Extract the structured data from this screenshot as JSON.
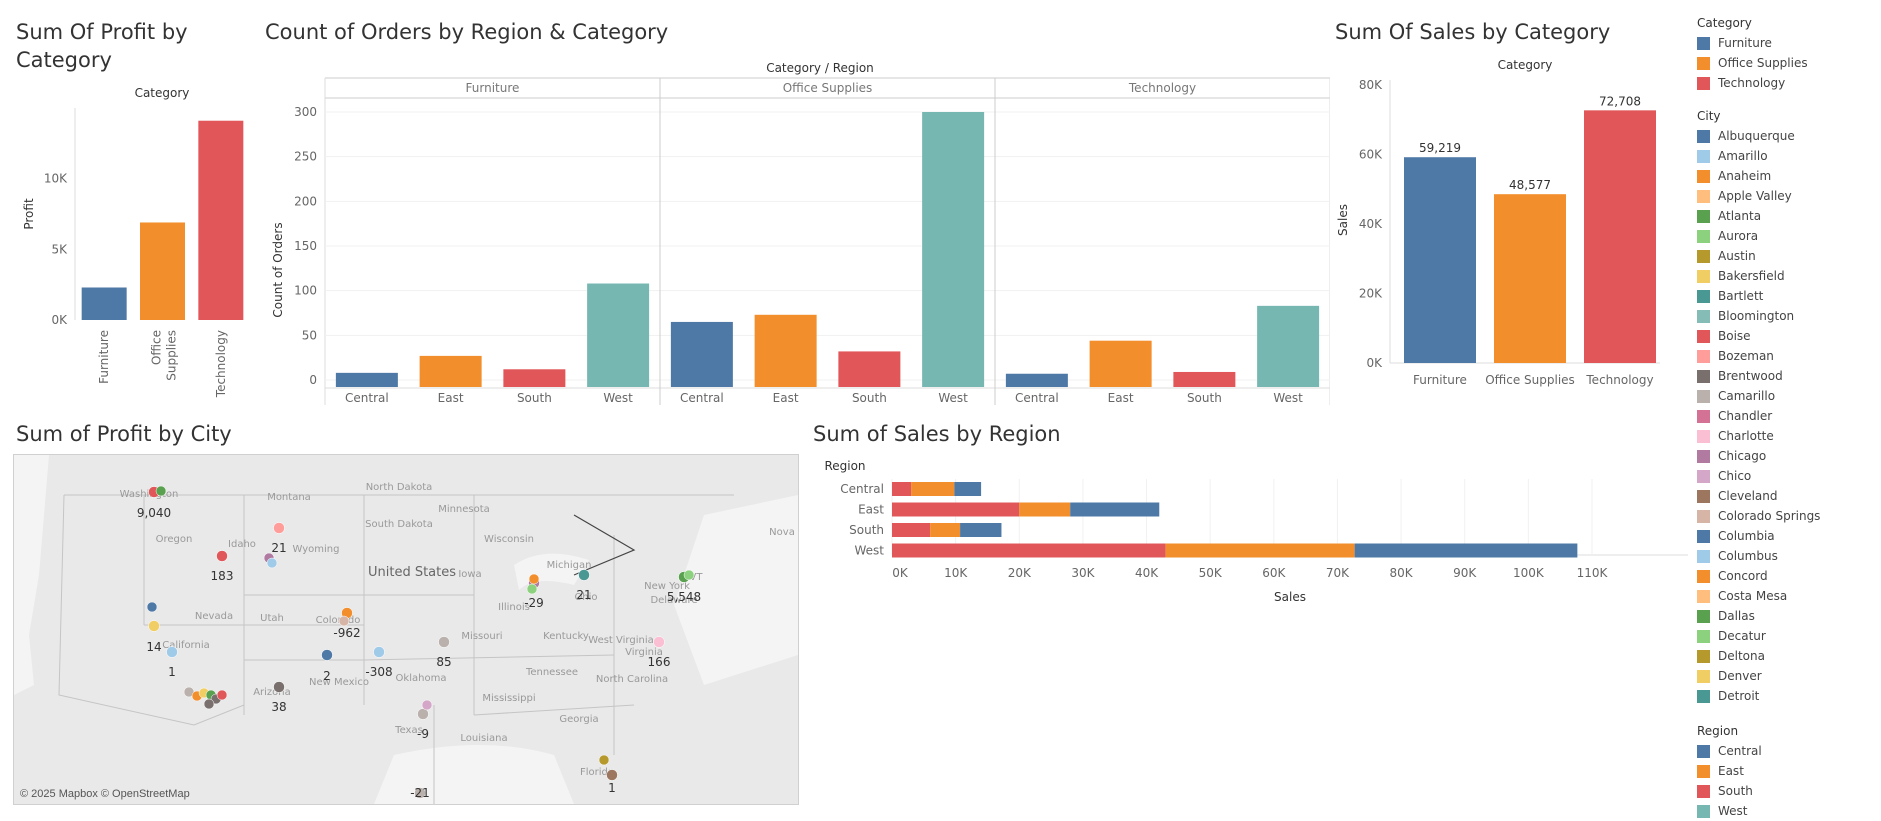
{
  "dashboard": {
    "profit_by_category": {
      "title": "Sum Of Profit by Category",
      "header": "Category",
      "ylabel": "Profit",
      "ticks": [
        "0K",
        "5K",
        "10K"
      ],
      "categories": [
        "Furniture",
        "Office Supplies",
        "Technology"
      ]
    },
    "orders_by_region": {
      "title": "Count of Orders by Region & Category",
      "header": "Category  /  Region",
      "ylabel": "Count of Orders",
      "ticks": [
        "0",
        "50",
        "100",
        "150",
        "200",
        "250",
        "300"
      ],
      "panels": [
        "Furniture",
        "Office Supplies",
        "Technology"
      ],
      "regions": [
        "Central",
        "East",
        "South",
        "West"
      ]
    },
    "sales_by_category": {
      "title": "Sum Of Sales by Category",
      "header": "Category",
      "ylabel": "Sales",
      "ticks": [
        "0K",
        "20K",
        "40K",
        "60K",
        "80K"
      ],
      "categories": [
        "Furniture",
        "Office Supplies",
        "Technology"
      ],
      "labels": [
        "59,219",
        "48,577",
        "72,708"
      ]
    },
    "profit_by_city": {
      "title": "Sum of Profit by City",
      "attribution": "© 2025 Mapbox © OpenStreetMap",
      "map_labels": [
        "Washington",
        "Montana",
        "North Dakota",
        "Minnesota",
        "South Dakota",
        "Oregon",
        "Idaho",
        "Wyoming",
        "Wisconsin",
        "Michigan",
        "Nova",
        "Iowa",
        "United States",
        "Nevada",
        "Utah",
        "Colorado",
        "Illinois",
        "Ohio",
        "New York",
        "VT",
        "California",
        "Missouri",
        "Kentucky",
        "West Virginia",
        "Virginia",
        "Arizona",
        "New Mexico",
        "Oklahoma",
        "Tennessee",
        "North Carolina",
        "Mississippi",
        "Texas",
        "Louisiana",
        "Georgia",
        "Florida",
        "Delaware"
      ],
      "value_labels": [
        "9,040",
        "21",
        "183",
        "-29",
        "21",
        "5,548",
        "-962",
        "14",
        "1",
        "2",
        "-308",
        "85",
        "166",
        "38",
        "-9",
        "-21",
        "1"
      ]
    },
    "sales_by_region": {
      "title": "Sum of Sales by Region",
      "header": "Region",
      "xlabel": "Sales",
      "ticks": [
        "0K",
        "10K",
        "20K",
        "30K",
        "40K",
        "50K",
        "60K",
        "70K",
        "80K",
        "90K",
        "100K",
        "110K"
      ],
      "regions": [
        "Central",
        "East",
        "South",
        "West"
      ]
    }
  },
  "legend": {
    "category": {
      "title": "Category",
      "items": [
        {
          "label": "Furniture",
          "color": "#4e79a7"
        },
        {
          "label": "Office Supplies",
          "color": "#f28e2b"
        },
        {
          "label": "Technology",
          "color": "#e15759"
        }
      ]
    },
    "city": {
      "title": "City",
      "items": [
        {
          "label": "Albuquerque",
          "color": "#4e79a7"
        },
        {
          "label": "Amarillo",
          "color": "#a0cbe8"
        },
        {
          "label": "Anaheim",
          "color": "#f28e2b"
        },
        {
          "label": "Apple Valley",
          "color": "#ffbe7d"
        },
        {
          "label": "Atlanta",
          "color": "#59a14f"
        },
        {
          "label": "Aurora",
          "color": "#8cd17d"
        },
        {
          "label": "Austin",
          "color": "#b6992d"
        },
        {
          "label": "Bakersfield",
          "color": "#f1ce63"
        },
        {
          "label": "Bartlett",
          "color": "#499894"
        },
        {
          "label": "Bloomington",
          "color": "#86bcb6"
        },
        {
          "label": "Boise",
          "color": "#e15759"
        },
        {
          "label": "Bozeman",
          "color": "#ff9d9a"
        },
        {
          "label": "Brentwood",
          "color": "#79706e"
        },
        {
          "label": "Camarillo",
          "color": "#bab0ac"
        },
        {
          "label": "Chandler",
          "color": "#d37295"
        },
        {
          "label": "Charlotte",
          "color": "#fabfd2"
        },
        {
          "label": "Chicago",
          "color": "#b07aa1"
        },
        {
          "label": "Chico",
          "color": "#d4a6c8"
        },
        {
          "label": "Cleveland",
          "color": "#9d7660"
        },
        {
          "label": "Colorado Springs",
          "color": "#d7b5a6"
        },
        {
          "label": "Columbia",
          "color": "#4e79a7"
        },
        {
          "label": "Columbus",
          "color": "#a0cbe8"
        },
        {
          "label": "Concord",
          "color": "#f28e2b"
        },
        {
          "label": "Costa Mesa",
          "color": "#ffbe7d"
        },
        {
          "label": "Dallas",
          "color": "#59a14f"
        },
        {
          "label": "Decatur",
          "color": "#8cd17d"
        },
        {
          "label": "Deltona",
          "color": "#b6992d"
        },
        {
          "label": "Denver",
          "color": "#f1ce63"
        },
        {
          "label": "Detroit",
          "color": "#499894"
        }
      ]
    },
    "region": {
      "title": "Region",
      "items": [
        {
          "label": "Central",
          "color": "#4e79a7"
        },
        {
          "label": "East",
          "color": "#f28e2b"
        },
        {
          "label": "South",
          "color": "#e15759"
        },
        {
          "label": "West",
          "color": "#76b7b2"
        }
      ]
    }
  },
  "chart_data": [
    {
      "type": "bar",
      "title": "Sum Of Profit by Category",
      "ylabel": "Profit",
      "categories": [
        "Furniture",
        "Office Supplies",
        "Technology"
      ],
      "values": [
        2300,
        6900,
        14100
      ],
      "colors": [
        "#4e79a7",
        "#f28e2b",
        "#e15759"
      ],
      "ylim": [
        0,
        15000
      ],
      "grid": false
    },
    {
      "type": "bar",
      "title": "Count of Orders by Region & Category",
      "ylabel": "Count of Orders",
      "panels": [
        "Furniture",
        "Office Supplies",
        "Technology"
      ],
      "categories": [
        "Central",
        "East",
        "South",
        "West"
      ],
      "series": [
        {
          "panel": "Furniture",
          "values": [
            8,
            27,
            12,
            108
          ]
        },
        {
          "panel": "Office Supplies",
          "values": [
            65,
            73,
            32,
            300
          ]
        },
        {
          "panel": "Technology",
          "values": [
            7,
            44,
            9,
            83
          ]
        }
      ],
      "colors": [
        "#4e79a7",
        "#f28e2b",
        "#e15759",
        "#76b7b2"
      ],
      "ylim": [
        0,
        310
      ]
    },
    {
      "type": "bar",
      "title": "Sum Of Sales by Category",
      "ylabel": "Sales",
      "categories": [
        "Furniture",
        "Office Supplies",
        "Technology"
      ],
      "values": [
        59219,
        48577,
        72708
      ],
      "colors": [
        "#4e79a7",
        "#f28e2b",
        "#e15759"
      ],
      "ylim": [
        0,
        80000
      ]
    },
    {
      "type": "bar",
      "orientation": "horizontal",
      "stacked": true,
      "title": "Sum of Sales by Region",
      "xlabel": "Sales",
      "categories": [
        "Central",
        "East",
        "South",
        "West"
      ],
      "series": [
        {
          "name": "Technology",
          "color": "#e15759",
          "values": [
            3000,
            20000,
            6000,
            43000
          ]
        },
        {
          "name": "Office Supplies",
          "color": "#f28e2b",
          "values": [
            6800,
            8000,
            4700,
            29700
          ]
        },
        {
          "name": "Furniture",
          "color": "#4e79a7",
          "values": [
            4200,
            14000,
            6500,
            35000
          ]
        }
      ],
      "xlim": [
        0,
        112000
      ]
    },
    {
      "type": "scatter",
      "title": "Sum of Profit by City",
      "points": [
        {
          "label": "9,040",
          "color": "#e15759"
        },
        {
          "label": "21",
          "color": "#ff9d9a"
        },
        {
          "label": "183",
          "color": "#e15759"
        },
        {
          "label": "-29",
          "color": "#b07aa1"
        },
        {
          "label": "21",
          "color": "#499894"
        },
        {
          "label": "5,548",
          "color": "#59a14f"
        },
        {
          "label": "-962",
          "color": "#f28e2b"
        },
        {
          "label": "14",
          "color": "#f1ce63"
        },
        {
          "label": "1",
          "color": "#a0cbe8"
        },
        {
          "label": "2",
          "color": "#4e79a7"
        },
        {
          "label": "-308",
          "color": "#a0cbe8"
        },
        {
          "label": "85",
          "color": "#bab0ac"
        },
        {
          "label": "166",
          "color": "#fabfd2"
        },
        {
          "label": "38",
          "color": "#79706e"
        },
        {
          "label": "-9",
          "color": "#bab0ac"
        },
        {
          "label": "-21",
          "color": "#bab0ac"
        },
        {
          "label": "1",
          "color": "#9d7660"
        }
      ]
    }
  ]
}
